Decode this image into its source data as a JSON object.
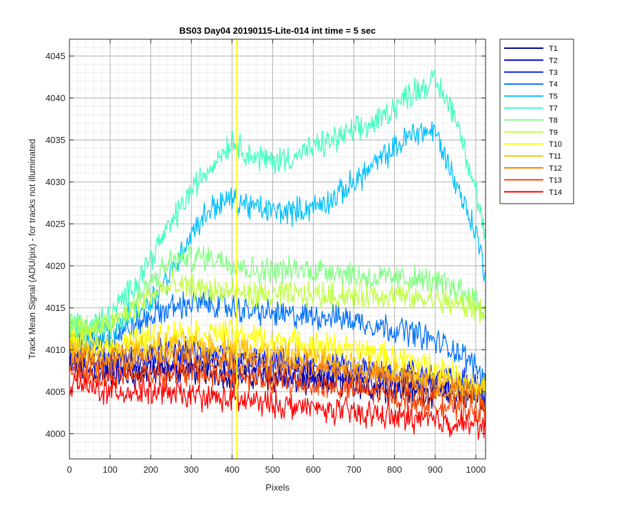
{
  "chart_data": {
    "type": "line",
    "title": "BS03 Day04 20190115-Lite-014 int time = 5 sec",
    "xlabel": "Pixels",
    "ylabel": "Track Mean Signal (ADU/pix) - for tracks not illuminated",
    "xlim": [
      0,
      1024
    ],
    "ylim": [
      3997,
      4047
    ],
    "xticks": [
      0,
      100,
      200,
      300,
      400,
      500,
      600,
      700,
      800,
      900,
      1000
    ],
    "yticks": [
      4000,
      4005,
      4010,
      4015,
      4020,
      4025,
      4030,
      4035,
      4040,
      4045
    ],
    "grid": "on",
    "legend_position": "outside-top-right",
    "x": [
      0,
      50,
      100,
      150,
      200,
      250,
      300,
      350,
      400,
      450,
      500,
      550,
      600,
      650,
      700,
      750,
      800,
      850,
      900,
      950,
      1000,
      1024
    ],
    "series": [
      {
        "name": "T1",
        "color": "#00008f",
        "values": [
          4008,
          4007.5,
          4007,
          4007,
          4007.3,
          4007.5,
          4007.5,
          4007.3,
          4007,
          4006.8,
          4006.5,
          4006.3,
          4006,
          4006,
          4005.8,
          4005.5,
          4005.3,
          4005,
          4004.8,
          4004.5,
          4004.2,
          4004
        ]
      },
      {
        "name": "T2",
        "color": "#0000c8",
        "values": [
          4009,
          4008.5,
          4008,
          4008,
          4008.3,
          4008.5,
          4008.5,
          4008.2,
          4008,
          4007.8,
          4007.5,
          4007.3,
          4007,
          4007,
          4006.8,
          4006.5,
          4006.3,
          4006,
          4005.8,
          4005.5,
          4005.2,
          4005
        ]
      },
      {
        "name": "T3",
        "color": "#0020ff",
        "values": [
          4010,
          4009.5,
          4009,
          4009,
          4009.5,
          4009.8,
          4009.8,
          4009.5,
          4009,
          4008.8,
          4008.5,
          4008.3,
          4008,
          4008,
          4007.8,
          4007.5,
          4007.5,
          4007.3,
          4007,
          4006.5,
          4006,
          4005.5
        ]
      },
      {
        "name": "T4",
        "color": "#0070ff",
        "values": [
          4012,
          4011,
          4011.5,
          4012.5,
          4014,
          4015,
          4015.5,
          4015.5,
          4015,
          4014.5,
          4014.3,
          4014,
          4014,
          4014,
          4013.5,
          4013,
          4012.5,
          4012,
          4011,
          4010,
          4008,
          4006.5
        ]
      },
      {
        "name": "T5",
        "color": "#00c0ff",
        "values": [
          4012,
          4011.5,
          4012,
          4014,
          4016,
          4019,
          4024,
          4027,
          4028,
          4027,
          4026.5,
          4026.5,
          4027,
          4028,
          4030,
          4032,
          4034,
          4036,
          4036,
          4030,
          4024,
          4019
        ]
      },
      {
        "name": "T7",
        "color": "#40ffbf",
        "values": [
          4013,
          4013,
          4014,
          4017,
          4021,
          4025,
          4029,
          4032,
          4035,
          4033,
          4032.5,
          4033,
          4034,
          4035,
          4036,
          4037,
          4039,
          4041,
          4042,
          4038,
          4029,
          4023
        ]
      },
      {
        "name": "T8",
        "color": "#80ff80",
        "values": [
          4013,
          4012.5,
          4013,
          4015,
          4018,
          4020.5,
          4021,
          4021,
          4020.5,
          4019.5,
          4019.5,
          4019.5,
          4019.5,
          4019.5,
          4019,
          4018.5,
          4018.5,
          4018.5,
          4018,
          4017.5,
          4016,
          4014
        ]
      },
      {
        "name": "T9",
        "color": "#bfff40",
        "values": [
          4013,
          4012.5,
          4013,
          4014.5,
          4016.5,
          4017.5,
          4017.5,
          4017,
          4017,
          4016.5,
          4016.5,
          4016.5,
          4016.5,
          4016.5,
          4016.5,
          4016.5,
          4016.5,
          4016,
          4016,
          4015.5,
          4015,
          4014.5
        ]
      },
      {
        "name": "T10",
        "color": "#ffff00",
        "values": [
          4011,
          4010.5,
          4010.5,
          4011,
          4011.5,
          4012,
          4012,
          4012,
          4012,
          4011.5,
          4011,
          4011,
          4010.5,
          4010.5,
          4010,
          4009.5,
          4009,
          4008.5,
          4008,
          4007,
          4006,
          4005.5
        ]
      },
      {
        "name": "T11",
        "color": "#ffc000",
        "values": [
          4010,
          4009.5,
          4009.5,
          4010,
          4010.3,
          4010.5,
          4010.5,
          4010.5,
          4010.3,
          4010,
          4009.5,
          4009.3,
          4009,
          4008.8,
          4008.5,
          4008,
          4007.5,
          4007,
          4006.5,
          4006,
          4005.5,
          4005
        ]
      },
      {
        "name": "T12",
        "color": "#ff8000",
        "values": [
          4009,
          4008.5,
          4008.5,
          4008.8,
          4009,
          4009.2,
          4009.2,
          4009,
          4008.8,
          4008.5,
          4008.2,
          4008,
          4007.8,
          4007.5,
          4007.2,
          4007,
          4006.5,
          4006,
          4005.5,
          4005,
          4004.5,
          4004
        ]
      },
      {
        "name": "T13",
        "color": "#ff4000",
        "values": [
          4007.5,
          4007,
          4006.8,
          4007,
          4007.2,
          4007.3,
          4007.2,
          4007,
          4006.8,
          4006.5,
          4006.2,
          4006,
          4005.8,
          4005.5,
          4005.2,
          4005,
          4004.5,
          4004,
          4003.5,
          4003,
          4002.8,
          4002.5
        ]
      },
      {
        "name": "T14",
        "color": "#ff0000",
        "values": [
          4006,
          4005.5,
          4005,
          4005,
          4005,
          4004.8,
          4004.5,
          4004.3,
          4004,
          4003.8,
          4003.5,
          4003.3,
          4003,
          4002.8,
          4002.5,
          4002.3,
          4002,
          4001.8,
          4001.5,
          4001.3,
          4001,
          4001
        ]
      }
    ],
    "annotations": [
      {
        "type": "vertical-line",
        "x": 412,
        "color": "#ffff00"
      }
    ]
  }
}
